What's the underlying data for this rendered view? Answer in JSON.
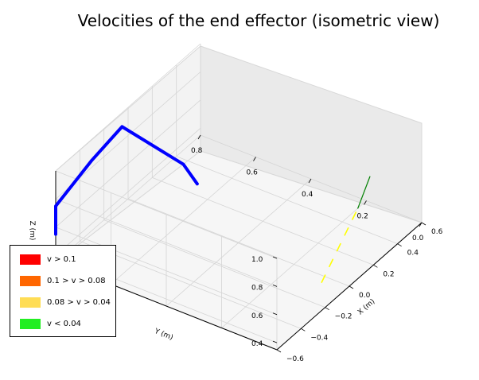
{
  "chart_data": {
    "type": "line3d",
    "title": "Velocities of the end effector (isometric view)",
    "xlabel": "X (m)",
    "ylabel": "Y (m)",
    "zlabel": "Z (m)",
    "x_ticks": [
      "−0.6",
      "−0.4",
      "−0.2",
      "0.0",
      "0.2",
      "0.4",
      "0.6"
    ],
    "y_ticks": [
      "0.0",
      "0.2",
      "0.4",
      "0.6",
      "0.8"
    ],
    "z_ticks": [
      "0.4",
      "0.6",
      "0.8",
      "1.0"
    ],
    "grid": true,
    "legend_position": "lower-left",
    "legend": [
      {
        "label": "v > 0.1",
        "color": "#ff0000"
      },
      {
        "label": "0.1 > v > 0.08",
        "color": "#ff6600"
      },
      {
        "label": "0.08 > v > 0.04",
        "color": "#ffdd55"
      },
      {
        "label": "v < 0.04",
        "color": "#22ee22"
      }
    ],
    "series": [
      {
        "color": "#0000ff",
        "style": "solid-thick",
        "points": [
          [
            -0.6,
            0.8,
            0.55
          ],
          [
            -0.6,
            0.8,
            0.75
          ],
          [
            -0.3,
            0.8,
            0.85
          ],
          [
            -0.05,
            0.8,
            0.9
          ],
          [
            0.0,
            0.6,
            0.75
          ],
          [
            0.0,
            0.55,
            0.65
          ]
        ]
      },
      {
        "color": "#ffff00",
        "style": "dashed",
        "points": [
          [
            0.0,
            0.1,
            0.3
          ],
          [
            0.15,
            0.1,
            0.45
          ],
          [
            0.3,
            0.1,
            0.6
          ]
        ]
      },
      {
        "color": "#008000",
        "style": "solid-thin",
        "points": [
          [
            0.3,
            0.1,
            0.6
          ],
          [
            0.4,
            0.1,
            0.75
          ]
        ]
      }
    ]
  }
}
